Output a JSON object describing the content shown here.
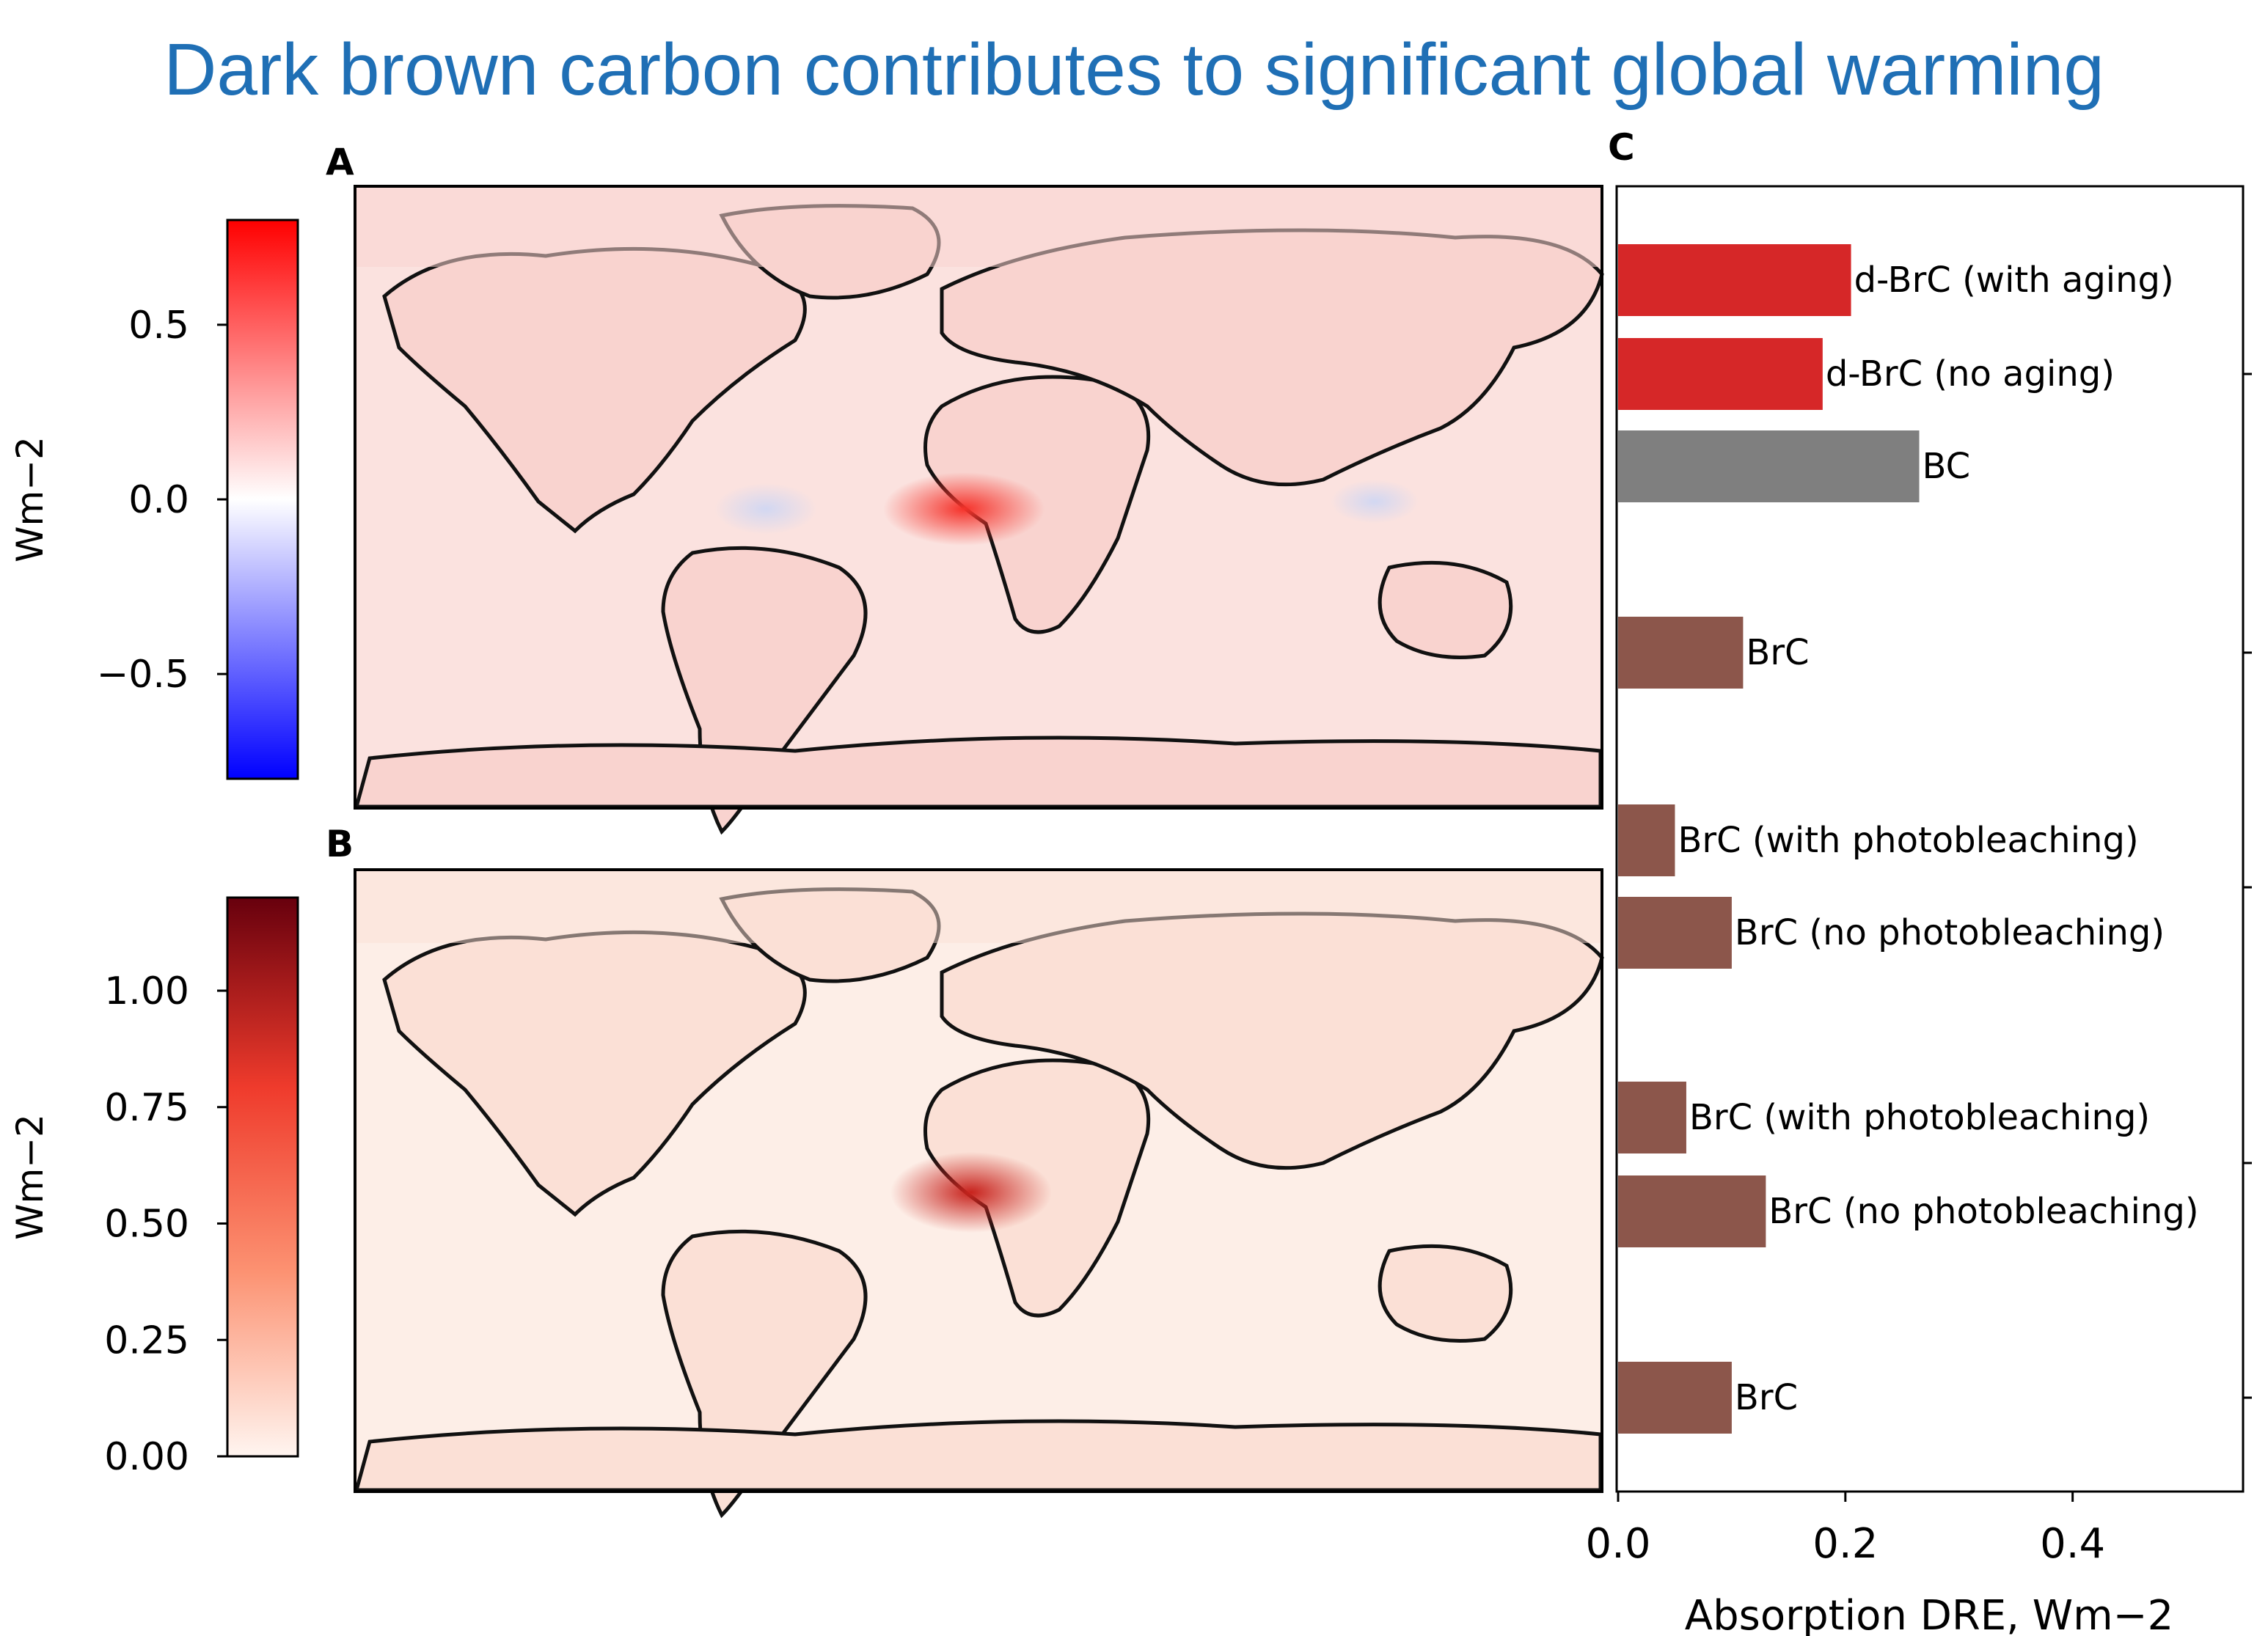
{
  "title": "Dark brown carbon contributes to significant global warming",
  "panels": {
    "a": {
      "label": "A",
      "colorbar": {
        "label": "Wm−2",
        "ticks": [
          "0.5",
          "0.0",
          "−0.5"
        ],
        "tick_values": [
          0.5,
          0.0,
          -0.5
        ],
        "range": [
          -0.8,
          0.8
        ],
        "colors": [
          "#0000ff",
          "#ffffff",
          "#ff0000"
        ]
      }
    },
    "b": {
      "label": "B",
      "colorbar": {
        "label": "Wm−2",
        "ticks": [
          "1.00",
          "0.75",
          "0.50",
          "0.25",
          "0.00"
        ],
        "tick_values": [
          1.0,
          0.75,
          0.5,
          0.25,
          0.0
        ],
        "range": [
          0,
          1.2
        ],
        "colors": [
          "#fff5f0",
          "#fc9272",
          "#ef3b2c",
          "#67000d"
        ]
      }
    },
    "c": {
      "label": "C"
    }
  },
  "map_colors": {
    "a_base": "#f9d3cf",
    "a_ocean": "#fbe2df",
    "a_hot": "#f5322a",
    "a_blue": "#cdd6f4",
    "b_base": "#fbe0d6",
    "b_ocean": "#fdeee7",
    "b_hot": "#c8231d"
  },
  "chart_data": {
    "type": "bar",
    "orientation": "horizontal",
    "categories": [
      "d-BrC (with aging)",
      "d-BrC (no aging)",
      "BC",
      "BrC",
      "BrC (with photobleaching)",
      "BrC (no photobleaching)",
      "BrC (with photobleaching)",
      "BrC (no photobleaching)",
      "BrC"
    ],
    "values": [
      0.205,
      0.18,
      0.265,
      0.11,
      0.05,
      0.1,
      0.06,
      0.13,
      0.1
    ],
    "colors": [
      "#d62728",
      "#d62728",
      "#7f7f7f",
      "#8c564b",
      "#8c564b",
      "#8c564b",
      "#8c564b",
      "#8c564b",
      "#8c564b"
    ],
    "xlabel": "Absorption DRE, Wm−2",
    "xticks": [
      "0.0",
      "0.2",
      "0.4"
    ],
    "xtick_values": [
      0.0,
      0.2,
      0.4
    ],
    "xlim": [
      0,
      0.55
    ]
  }
}
